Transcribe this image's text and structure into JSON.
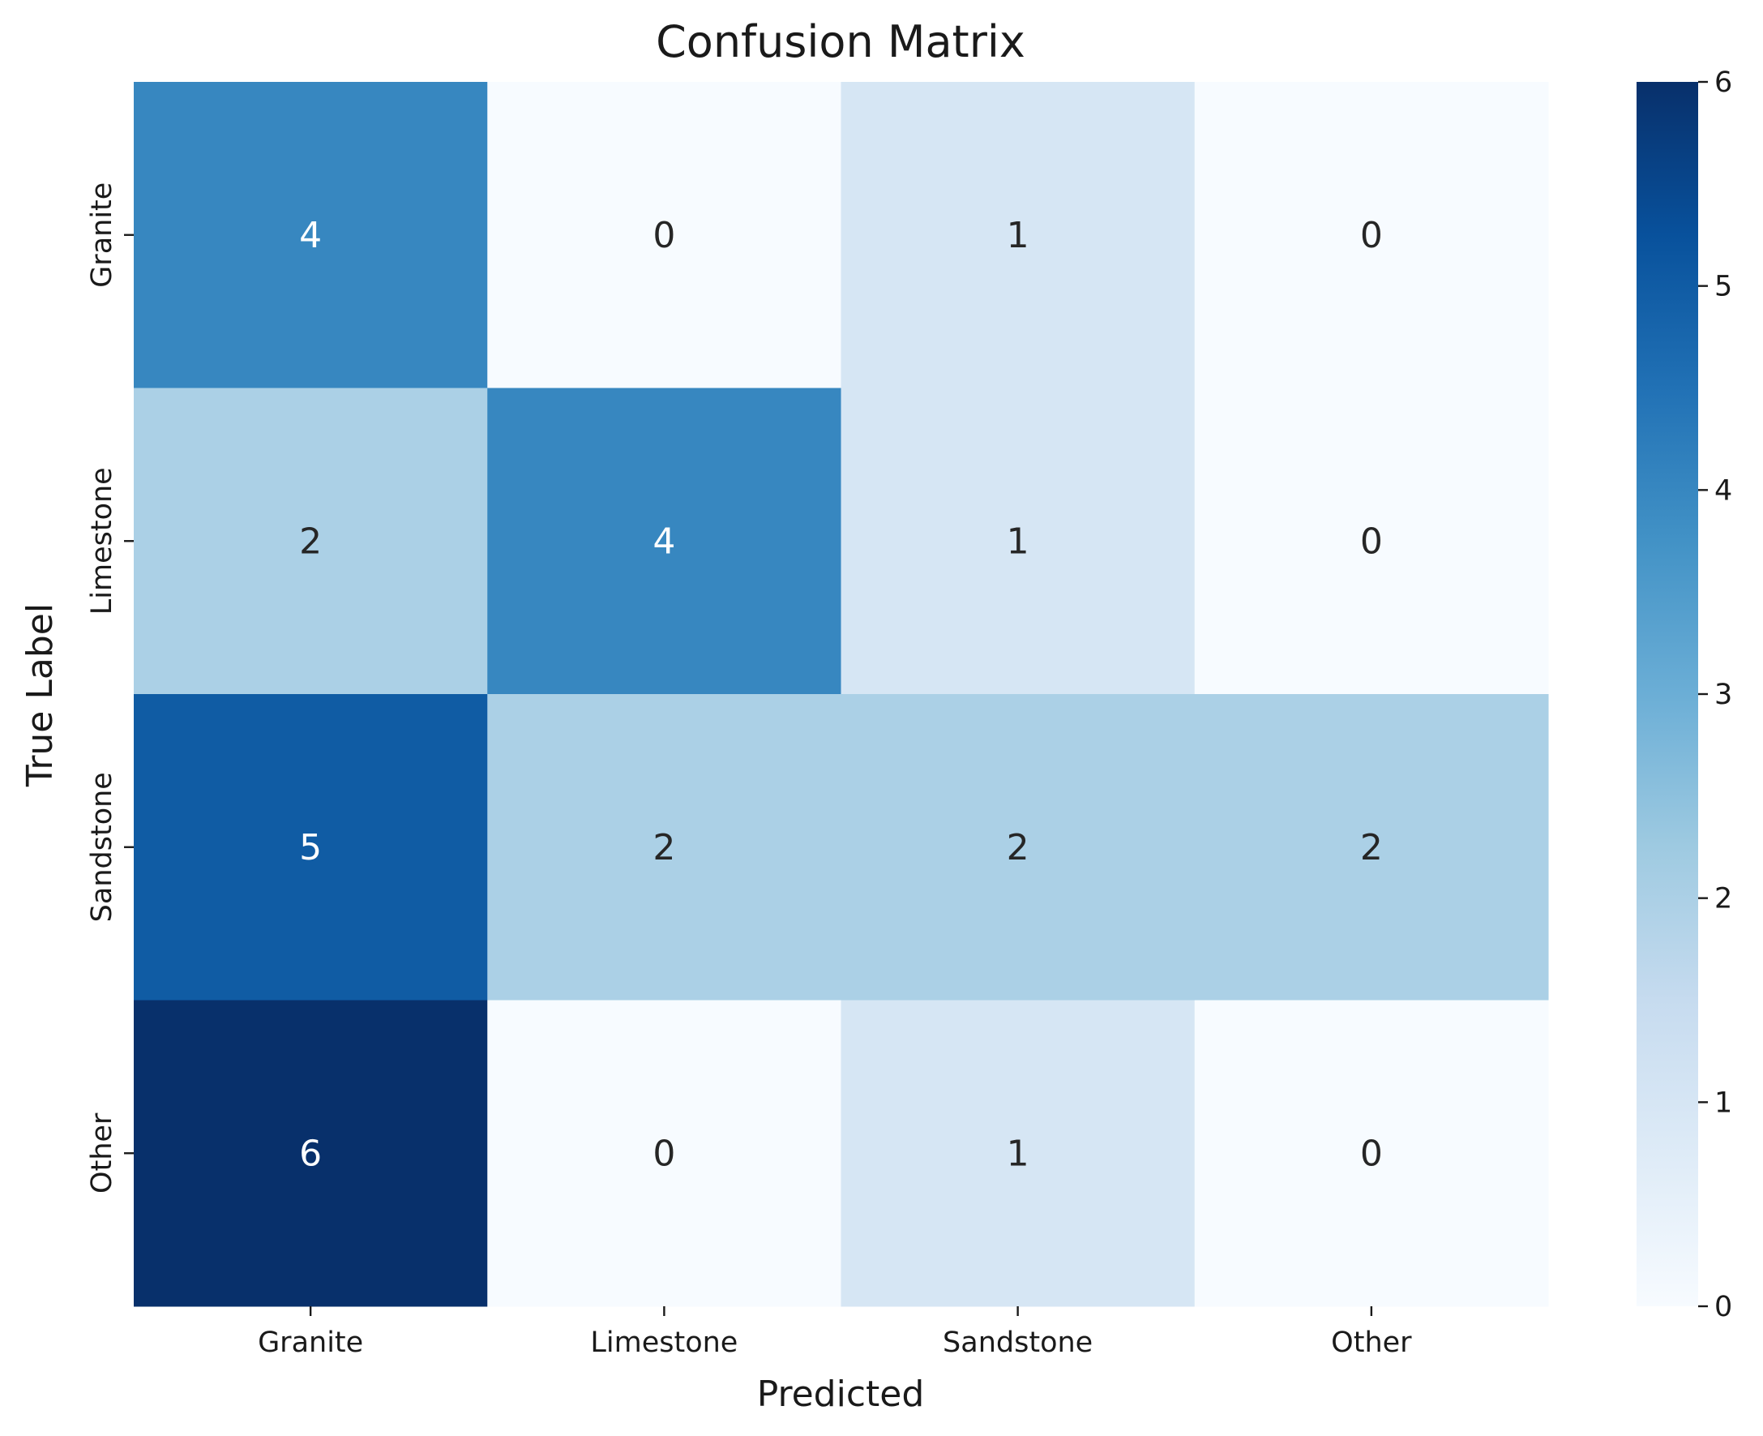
{
  "chart_data": {
    "type": "heatmap",
    "title": "Confusion Matrix",
    "xlabel": "Predicted",
    "ylabel": "True Label",
    "x_categories": [
      "Granite",
      "Limestone",
      "Sandstone",
      "Other"
    ],
    "y_categories": [
      "Granite",
      "Limestone",
      "Sandstone",
      "Other"
    ],
    "values": [
      [
        4,
        0,
        1,
        0
      ],
      [
        2,
        4,
        1,
        0
      ],
      [
        5,
        2,
        2,
        2
      ],
      [
        6,
        0,
        1,
        0
      ]
    ],
    "colormap": "Blues",
    "vmin": 0,
    "vmax": 6,
    "colorbar_ticks": [
      "0",
      "1",
      "2",
      "3",
      "4",
      "5",
      "6"
    ],
    "annotated": true
  }
}
